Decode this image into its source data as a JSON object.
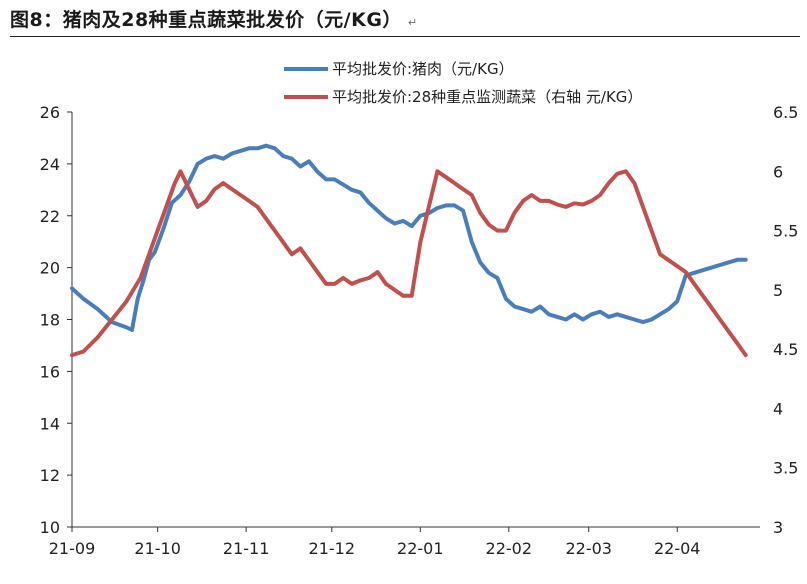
{
  "page": {
    "title": "图8：猪肉及28种重点蔬菜批发价（元/KG）",
    "title_mark": "↵"
  },
  "chart_data": {
    "type": "line",
    "title": "图8：猪肉及28种重点蔬菜批发价（元/KG）",
    "xlabel": "",
    "ylabel": "",
    "x_ticks": [
      "21-09",
      "21-10",
      "21-11",
      "21-12",
      "22-01",
      "22-02",
      "22-03",
      "22-04"
    ],
    "x_range": [
      "2021-09-01",
      "2022-04-30"
    ],
    "y_left": {
      "min": 10,
      "max": 26,
      "ticks": [
        10,
        12,
        14,
        16,
        18,
        20,
        22,
        24,
        26
      ]
    },
    "y_right": {
      "min": 3,
      "max": 6.5,
      "ticks": [
        3,
        3.5,
        4,
        4.5,
        5,
        5.5,
        6,
        6.5
      ]
    },
    "grid": false,
    "legend_position": "top-center",
    "series": [
      {
        "name": "平均批发价:猪肉（元/KG）",
        "axis": "left",
        "color": "#4a7ebb",
        "x": [
          "2021-09-01",
          "2021-09-05",
          "2021-09-10",
          "2021-09-15",
          "2021-09-20",
          "2021-09-22",
          "2021-09-24",
          "2021-09-26",
          "2021-09-28",
          "2021-09-30",
          "2021-10-03",
          "2021-10-06",
          "2021-10-09",
          "2021-10-12",
          "2021-10-15",
          "2021-10-18",
          "2021-10-21",
          "2021-10-24",
          "2021-10-27",
          "2021-10-30",
          "2021-11-02",
          "2021-11-05",
          "2021-11-08",
          "2021-11-11",
          "2021-11-14",
          "2021-11-17",
          "2021-11-20",
          "2021-11-23",
          "2021-11-26",
          "2021-11-29",
          "2021-12-02",
          "2021-12-05",
          "2021-12-08",
          "2021-12-11",
          "2021-12-14",
          "2021-12-17",
          "2021-12-20",
          "2021-12-23",
          "2021-12-26",
          "2021-12-29",
          "2022-01-01",
          "2022-01-04",
          "2022-01-07",
          "2022-01-10",
          "2022-01-13",
          "2022-01-16",
          "2022-01-19",
          "2022-01-22",
          "2022-01-25",
          "2022-01-28",
          "2022-01-31",
          "2022-02-03",
          "2022-02-06",
          "2022-02-09",
          "2022-02-12",
          "2022-02-15",
          "2022-02-18",
          "2022-02-21",
          "2022-02-24",
          "2022-02-27",
          "2022-03-02",
          "2022-03-05",
          "2022-03-08",
          "2022-03-11",
          "2022-03-14",
          "2022-03-17",
          "2022-03-20",
          "2022-03-23",
          "2022-03-26",
          "2022-03-29",
          "2022-04-01",
          "2022-04-04",
          "2022-04-07",
          "2022-04-10",
          "2022-04-13",
          "2022-04-16",
          "2022-04-19",
          "2022-04-22",
          "2022-04-25"
        ],
        "values": [
          19.2,
          18.8,
          18.4,
          17.9,
          17.7,
          17.6,
          18.8,
          19.5,
          20.3,
          20.6,
          21.5,
          22.5,
          22.8,
          23.3,
          24.0,
          24.2,
          24.3,
          24.2,
          24.4,
          24.5,
          24.6,
          24.6,
          24.7,
          24.6,
          24.3,
          24.2,
          23.9,
          24.1,
          23.7,
          23.4,
          23.4,
          23.2,
          23.0,
          22.9,
          22.5,
          22.2,
          21.9,
          21.7,
          21.8,
          21.6,
          22.0,
          22.1,
          22.3,
          22.4,
          22.4,
          22.2,
          21.0,
          20.2,
          19.8,
          19.6,
          18.8,
          18.5,
          18.4,
          18.3,
          18.5,
          18.2,
          18.1,
          18.0,
          18.2,
          18.0,
          18.2,
          18.3,
          18.1,
          18.2,
          18.1,
          18.0,
          17.9,
          18.0,
          18.2,
          18.4,
          18.7,
          19.7,
          19.8,
          19.9,
          20.0,
          20.1,
          20.2,
          20.3,
          20.3
        ]
      },
      {
        "name": "平均批发价:28种重点监测蔬菜（右轴 元/KG）",
        "axis": "right",
        "color": "#c0504d",
        "x": [
          "2021-09-01",
          "2021-09-05",
          "2021-09-10",
          "2021-09-15",
          "2021-09-20",
          "2021-09-25",
          "2021-09-28",
          "2021-10-01",
          "2021-10-04",
          "2021-10-07",
          "2021-10-09",
          "2021-10-12",
          "2021-10-15",
          "2021-10-18",
          "2021-10-21",
          "2021-10-24",
          "2021-10-27",
          "2021-10-30",
          "2021-11-02",
          "2021-11-05",
          "2021-11-08",
          "2021-11-11",
          "2021-11-14",
          "2021-11-17",
          "2021-11-20",
          "2021-11-23",
          "2021-11-26",
          "2021-11-29",
          "2021-12-02",
          "2021-12-05",
          "2021-12-08",
          "2021-12-11",
          "2021-12-14",
          "2021-12-17",
          "2021-12-20",
          "2021-12-23",
          "2021-12-26",
          "2021-12-29",
          "2022-01-01",
          "2022-01-04",
          "2022-01-07",
          "2022-01-10",
          "2022-01-13",
          "2022-01-16",
          "2022-01-19",
          "2022-01-22",
          "2022-01-25",
          "2022-01-28",
          "2022-01-31",
          "2022-02-03",
          "2022-02-06",
          "2022-02-09",
          "2022-02-12",
          "2022-02-15",
          "2022-02-18",
          "2022-02-21",
          "2022-02-24",
          "2022-02-27",
          "2022-03-02",
          "2022-03-05",
          "2022-03-08",
          "2022-03-11",
          "2022-03-14",
          "2022-03-17",
          "2022-03-20",
          "2022-03-23",
          "2022-03-26",
          "2022-03-29",
          "2022-04-01",
          "2022-04-04",
          "2022-04-07",
          "2022-04-10",
          "2022-04-13",
          "2022-04-16",
          "2022-04-19",
          "2022-04-22",
          "2022-04-25"
        ],
        "values": [
          4.45,
          4.48,
          4.6,
          4.75,
          4.9,
          5.1,
          5.3,
          5.5,
          5.7,
          5.9,
          6.0,
          5.85,
          5.7,
          5.75,
          5.85,
          5.9,
          5.85,
          5.8,
          5.75,
          5.7,
          5.6,
          5.5,
          5.4,
          5.3,
          5.35,
          5.25,
          5.15,
          5.05,
          5.05,
          5.1,
          5.05,
          5.08,
          5.1,
          5.15,
          5.05,
          5.0,
          4.95,
          4.95,
          5.4,
          5.7,
          6.0,
          5.95,
          5.9,
          5.85,
          5.8,
          5.65,
          5.55,
          5.5,
          5.5,
          5.65,
          5.75,
          5.8,
          5.75,
          5.75,
          5.72,
          5.7,
          5.73,
          5.72,
          5.75,
          5.8,
          5.9,
          5.98,
          6.0,
          5.9,
          5.7,
          5.5,
          5.3,
          5.25,
          5.2,
          5.15,
          5.05,
          4.95,
          4.85,
          4.75,
          4.65,
          4.55,
          4.45
        ]
      }
    ]
  }
}
